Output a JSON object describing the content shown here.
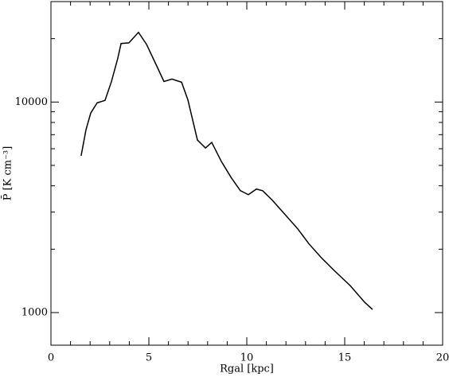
{
  "chart_data": {
    "type": "line",
    "x_label": "Rgal [kpc]",
    "y_label": "P̄ [K cm⁻³]",
    "x": [
      1.54,
      1.79,
      2.03,
      2.36,
      2.76,
      3.09,
      3.41,
      3.58,
      3.98,
      4.47,
      4.88,
      5.45,
      5.77,
      6.18,
      6.67,
      6.99,
      7.48,
      7.89,
      8.21,
      8.7,
      9.19,
      9.67,
      10.08,
      10.49,
      10.81,
      11.3,
      11.95,
      12.6,
      13.17,
      13.82,
      14.47,
      15.28,
      16.02,
      16.42
    ],
    "series": [
      {
        "color": "#000000",
        "values": [
          5556,
          7388,
          8858,
          9914,
          10180,
          12520,
          16100,
          18970,
          19100,
          21430,
          18800,
          14510,
          12520,
          12850,
          12420,
          10260,
          6600,
          6050,
          6430,
          5225,
          4395,
          3794,
          3630,
          3860,
          3790,
          3420,
          2925,
          2500,
          2123,
          1816,
          1582,
          1343,
          1119,
          1035
        ]
      }
    ],
    "xlim": [
      0,
      20
    ],
    "xticks": [
      0,
      5,
      10,
      15,
      20
    ],
    "xminorticks": [
      1,
      2,
      3,
      4,
      6,
      7,
      8,
      9,
      11,
      12,
      13,
      14,
      16,
      17,
      18,
      19
    ],
    "ylim": [
      700,
      30000
    ],
    "ylog": true,
    "yticks": [
      1000,
      10000
    ],
    "yminorticks": [
      2000,
      3000,
      4000,
      5000,
      6000,
      7000,
      8000,
      9000,
      20000,
      30000
    ]
  }
}
